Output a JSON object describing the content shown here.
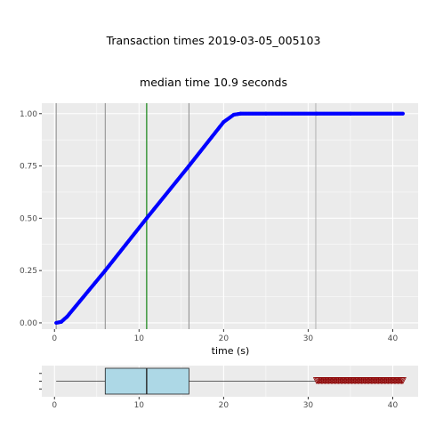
{
  "title": "Transaction times  2019-03-05_005103",
  "subtitle": "median time 10.9 seconds",
  "colors": {
    "panel_bg": "#ebebeb",
    "grid": "#ffffff",
    "points": "#0000ff",
    "median_line": "#228b22",
    "quantile_line": "#8c8c8c",
    "box_fill": "#add8e6",
    "outliers": "#8b0000"
  },
  "chart_data": [
    {
      "type": "scatter",
      "name": "ecdf",
      "xlabel": "time (s)",
      "ylabel": "",
      "xlim": [
        -1.5,
        43
      ],
      "ylim": [
        -0.03,
        1.05
      ],
      "x_ticks": [
        0,
        10,
        20,
        30,
        40
      ],
      "x_tick_labels": [
        "0",
        "10",
        "20",
        "30",
        "40"
      ],
      "y_ticks": [
        0,
        0.25,
        0.5,
        0.75,
        1.0
      ],
      "y_tick_labels": [
        "0.00",
        "0.25",
        "0.50",
        "0.75",
        "1.00"
      ],
      "grid": true,
      "series": [
        {
          "x": [
            0.2,
            0.8,
            1.5,
            6.0,
            10.9,
            15.9,
            20.0,
            21.2,
            22.0,
            25.0,
            31.0,
            35.0,
            41.2
          ],
          "y": [
            0.0,
            0.005,
            0.03,
            0.25,
            0.5,
            0.75,
            0.96,
            0.995,
            1.0,
            1.0,
            1.0,
            1.0,
            1.0
          ]
        }
      ],
      "vlines": [
        {
          "x": 0.2,
          "role": "min"
        },
        {
          "x": 6.0,
          "role": "q1"
        },
        {
          "x": 10.9,
          "role": "median"
        },
        {
          "x": 15.9,
          "role": "q3"
        },
        {
          "x": 30.9,
          "role": "upper-fence"
        }
      ]
    },
    {
      "type": "boxplot",
      "name": "box",
      "xlim": [
        -1.5,
        43
      ],
      "x_ticks": [
        0,
        10,
        20,
        30,
        40
      ],
      "x_tick_labels": [
        "0",
        "10",
        "20",
        "30",
        "40"
      ],
      "whisker_low": 0.2,
      "q1": 6.0,
      "median": 10.9,
      "q3": 15.9,
      "whisker_high": 30.9,
      "outliers_range": [
        31.0,
        41.2
      ]
    }
  ]
}
